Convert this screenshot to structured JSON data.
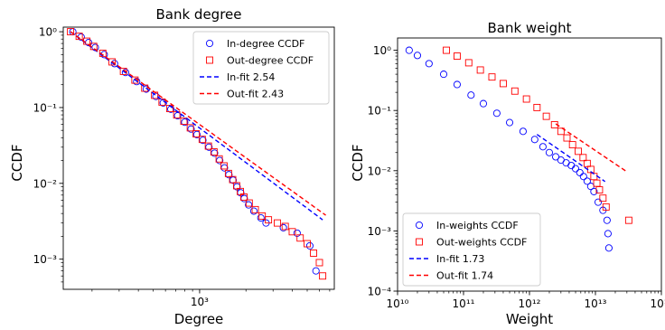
{
  "chart_data": [
    {
      "type": "scatter",
      "title": "Bank degree",
      "xlabel": "Degree",
      "ylabel": "CCDF",
      "xscale": "log",
      "yscale": "log",
      "xlim": [
        130,
        7500
      ],
      "ylim": [
        0.0004,
        1.15
      ],
      "x_tick_labels": [
        "10^3"
      ],
      "y_tick_labels": [
        "10^0",
        "10^-1",
        "10^-2",
        "10^-3"
      ],
      "legend_position": "upper right",
      "series": [
        {
          "name": "In-degree CCDF",
          "kind": "marker",
          "marker": "circle",
          "color": "#0000ff",
          "points": [
            [
              150,
              1.0
            ],
            [
              170,
              0.85
            ],
            [
              190,
              0.72
            ],
            [
              210,
              0.62
            ],
            [
              240,
              0.5
            ],
            [
              280,
              0.38
            ],
            [
              330,
              0.29
            ],
            [
              390,
              0.22
            ],
            [
              450,
              0.175
            ],
            [
              520,
              0.14
            ],
            [
              580,
              0.115
            ],
            [
              650,
              0.095
            ],
            [
              720,
              0.078
            ],
            [
              800,
              0.064
            ],
            [
              880,
              0.052
            ],
            [
              960,
              0.044
            ],
            [
              1050,
              0.037
            ],
            [
              1150,
              0.03
            ],
            [
              1250,
              0.025
            ],
            [
              1350,
              0.02
            ],
            [
              1450,
              0.016
            ],
            [
              1550,
              0.013
            ],
            [
              1650,
              0.011
            ],
            [
              1750,
              0.009
            ],
            [
              1850,
              0.0075
            ],
            [
              1950,
              0.0063
            ],
            [
              2080,
              0.0052
            ],
            [
              2250,
              0.0043
            ],
            [
              2500,
              0.0035
            ],
            [
              2700,
              0.003
            ],
            [
              3500,
              0.0026
            ],
            [
              4300,
              0.0022
            ],
            [
              5200,
              0.0015
            ],
            [
              5700,
              0.0007
            ]
          ]
        },
        {
          "name": "Out-degree CCDF",
          "kind": "marker",
          "marker": "square",
          "color": "#ff0000",
          "points": [
            [
              145,
              1.0
            ],
            [
              165,
              0.87
            ],
            [
              185,
              0.75
            ],
            [
              205,
              0.64
            ],
            [
              235,
              0.52
            ],
            [
              270,
              0.4
            ],
            [
              320,
              0.3
            ],
            [
              380,
              0.23
            ],
            [
              440,
              0.18
            ],
            [
              510,
              0.145
            ],
            [
              570,
              0.118
            ],
            [
              640,
              0.097
            ],
            [
              710,
              0.08
            ],
            [
              790,
              0.066
            ],
            [
              870,
              0.054
            ],
            [
              950,
              0.045
            ],
            [
              1040,
              0.038
            ],
            [
              1140,
              0.031
            ],
            [
              1240,
              0.026
            ],
            [
              1340,
              0.021
            ],
            [
              1440,
              0.017
            ],
            [
              1540,
              0.0135
            ],
            [
              1640,
              0.0112
            ],
            [
              1740,
              0.0093
            ],
            [
              1840,
              0.0078
            ],
            [
              1940,
              0.0066
            ],
            [
              2100,
              0.0055
            ],
            [
              2300,
              0.0045
            ],
            [
              2550,
              0.0037
            ],
            [
              2800,
              0.0033
            ],
            [
              3200,
              0.003
            ],
            [
              3600,
              0.0027
            ],
            [
              4000,
              0.0023
            ],
            [
              4500,
              0.0019
            ],
            [
              5000,
              0.0016
            ],
            [
              5500,
              0.0012
            ],
            [
              6000,
              0.0009
            ],
            [
              6300,
              0.0006
            ]
          ]
        },
        {
          "name": "In-fit 2.54",
          "kind": "line",
          "dash": true,
          "color": "#0000ff",
          "points": [
            [
              145,
              1.0
            ],
            [
              6300,
              0.0033
            ]
          ]
        },
        {
          "name": "Out-fit 2.43",
          "kind": "line",
          "dash": true,
          "color": "#ff0000",
          "points": [
            [
              145,
              1.0
            ],
            [
              6600,
              0.0038
            ]
          ]
        }
      ]
    },
    {
      "type": "scatter",
      "title": "Bank weight",
      "xlabel": "Weight",
      "ylabel": "CCDF",
      "xscale": "log",
      "yscale": "log",
      "xlim": [
        10000000000,
        100000000000000
      ],
      "ylim": [
        0.0001,
        1.6
      ],
      "x_tick_labels": [
        "10^10",
        "10^11",
        "10^12",
        "10^13",
        "10^14"
      ],
      "y_tick_labels": [
        "10^0",
        "10^-1",
        "10^-2",
        "10^-3",
        "10^-4"
      ],
      "legend_position": "lower left",
      "series": [
        {
          "name": "In-weights CCDF",
          "kind": "marker",
          "marker": "circle",
          "color": "#0000ff",
          "points": [
            [
              15000000000,
              1.0
            ],
            [
              20000000000,
              0.82
            ],
            [
              30000000000,
              0.6
            ],
            [
              50000000000,
              0.4
            ],
            [
              80000000000,
              0.27
            ],
            [
              130000000000,
              0.18
            ],
            [
              200000000000,
              0.13
            ],
            [
              320000000000,
              0.09
            ],
            [
              500000000000,
              0.063
            ],
            [
              800000000000,
              0.045
            ],
            [
              1200000000000,
              0.033
            ],
            [
              1600000000000,
              0.025
            ],
            [
              2000000000000,
              0.02
            ],
            [
              2500000000000,
              0.017
            ],
            [
              3000000000000,
              0.015
            ],
            [
              3600000000000,
              0.0135
            ],
            [
              4300000000000,
              0.0122
            ],
            [
              5000000000000,
              0.0108
            ],
            [
              5800000000000,
              0.0093
            ],
            [
              6600000000000,
              0.008
            ],
            [
              7500000000000,
              0.0067
            ],
            [
              8500000000000,
              0.0055
            ],
            [
              9500000000000,
              0.0045
            ],
            [
              11000000000000,
              0.003
            ],
            [
              13000000000000,
              0.0022
            ],
            [
              15000000000000,
              0.0015
            ],
            [
              15500000000000,
              0.0009
            ],
            [
              16000000000000,
              0.00052
            ]
          ]
        },
        {
          "name": "Out-weights CCDF",
          "kind": "marker",
          "marker": "square",
          "color": "#ff0000",
          "points": [
            [
              55000000000,
              1.0
            ],
            [
              80000000000,
              0.8
            ],
            [
              120000000000,
              0.62
            ],
            [
              180000000000,
              0.47
            ],
            [
              270000000000,
              0.36
            ],
            [
              400000000000,
              0.28
            ],
            [
              600000000000,
              0.21
            ],
            [
              900000000000,
              0.155
            ],
            [
              1300000000000,
              0.112
            ],
            [
              1800000000000,
              0.08
            ],
            [
              2400000000000,
              0.058
            ],
            [
              3000000000000,
              0.045
            ],
            [
              3700000000000,
              0.035
            ],
            [
              4500000000000,
              0.027
            ],
            [
              5500000000000,
              0.021
            ],
            [
              6500000000000,
              0.0165
            ],
            [
              7500000000000,
              0.0132
            ],
            [
              8500000000000,
              0.0105
            ],
            [
              9500000000000,
              0.008
            ],
            [
              10500000000000,
              0.0062
            ],
            [
              11500000000000,
              0.0048
            ],
            [
              13000000000000,
              0.0035
            ],
            [
              14500000000000,
              0.0025
            ],
            [
              32000000000000,
              0.0015
            ]
          ]
        },
        {
          "name": "In-fit 1.73",
          "kind": "line",
          "dash": true,
          "color": "#0000ff",
          "points": [
            [
              1300000000000,
              0.04
            ],
            [
              14000000000000,
              0.0066
            ]
          ]
        },
        {
          "name": "Out-fit 1.74",
          "kind": "line",
          "dash": true,
          "color": "#ff0000",
          "points": [
            [
              2500000000000,
              0.06
            ],
            [
              30000000000000,
              0.0096
            ]
          ]
        }
      ]
    }
  ]
}
